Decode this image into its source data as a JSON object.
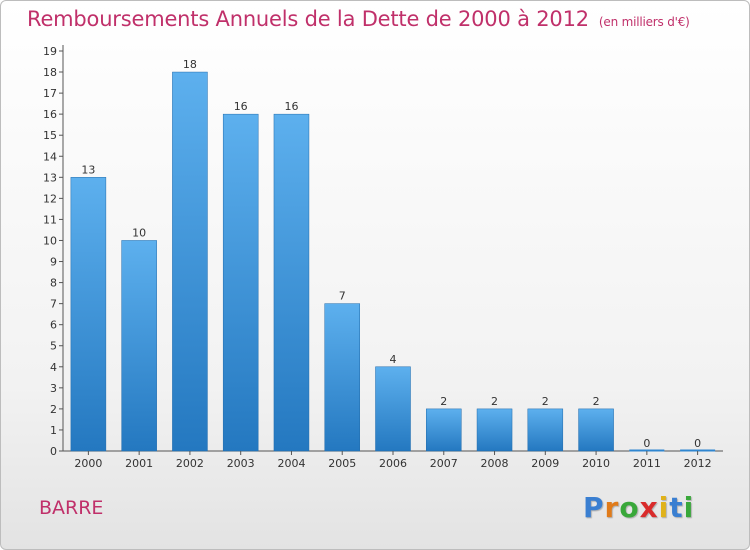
{
  "chart_data": {
    "type": "bar",
    "title": "Remboursements Annuels de la Dette de 2000 à 2012",
    "subtitle": "(en milliers d'€)",
    "categories": [
      "2000",
      "2001",
      "2002",
      "2003",
      "2004",
      "2005",
      "2006",
      "2007",
      "2008",
      "2009",
      "2010",
      "2011",
      "2012"
    ],
    "values": [
      13,
      10,
      18,
      16,
      16,
      7,
      4,
      2,
      2,
      2,
      2,
      0,
      0
    ],
    "ylim": [
      0,
      19
    ],
    "yticks": [
      0,
      1,
      2,
      3,
      4,
      5,
      6,
      7,
      8,
      9,
      10,
      11,
      12,
      13,
      14,
      15,
      16,
      17,
      18,
      19
    ],
    "grid": false,
    "bar_color": "#3a8fd8"
  },
  "footer": {
    "commune": "BARRE",
    "logo_letters": [
      "P",
      "r",
      "o",
      "x",
      "i",
      "t",
      "i"
    ],
    "logo_colors": [
      "#3a7fd1",
      "#e07b1a",
      "#39a83a",
      "#d92b2b",
      "#e0b21a",
      "#3a7fd1",
      "#39a83a"
    ]
  }
}
